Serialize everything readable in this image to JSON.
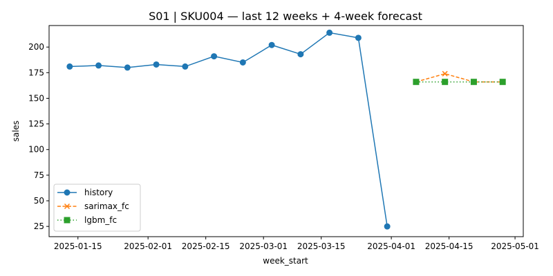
{
  "chart_data": {
    "type": "line",
    "title": "S01 | SKU004 — last 12 weeks + 4-week forecast",
    "xlabel": "week_start",
    "ylabel": "sales",
    "xlim": [
      "2025-01-08",
      "2025-05-03"
    ],
    "ylim": [
      15,
      221
    ],
    "x_ticks": [
      "2025-01-15",
      "2025-02-01",
      "2025-02-15",
      "2025-03-01",
      "2025-03-15",
      "2025-04-01",
      "2025-04-15",
      "2025-05-01"
    ],
    "y_ticks": [
      25,
      50,
      75,
      100,
      125,
      150,
      175,
      200
    ],
    "grid": false,
    "legend_position": "lower-left",
    "series": [
      {
        "name": "history",
        "color": "#1f77b4",
        "line_style": "solid",
        "marker": "circle",
        "x": [
          "2025-01-13",
          "2025-01-20",
          "2025-01-27",
          "2025-02-03",
          "2025-02-10",
          "2025-02-17",
          "2025-02-24",
          "2025-03-03",
          "2025-03-10",
          "2025-03-17",
          "2025-03-24",
          "2025-03-31"
        ],
        "values": [
          181,
          182,
          180,
          183,
          181,
          191,
          185,
          202,
          193,
          214,
          209,
          25
        ]
      },
      {
        "name": "sarimax_fc",
        "color": "#ff7f0e",
        "line_style": "dashed",
        "marker": "x",
        "x": [
          "2025-04-07",
          "2025-04-14",
          "2025-04-21",
          "2025-04-28"
        ],
        "values": [
          166,
          174,
          166,
          166
        ]
      },
      {
        "name": "lgbm_fc",
        "color": "#2ca02c",
        "line_style": "dotted",
        "marker": "square",
        "x": [
          "2025-04-07",
          "2025-04-14",
          "2025-04-21",
          "2025-04-28"
        ],
        "values": [
          166,
          166,
          166,
          166
        ]
      }
    ]
  }
}
